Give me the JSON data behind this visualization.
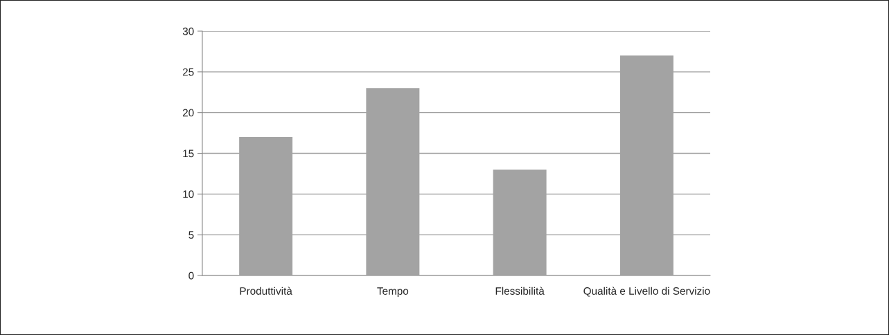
{
  "chart_data": {
    "type": "bar",
    "categories": [
      "Produttività",
      "Tempo",
      "Flessibilità",
      "Qualità e Livello di Servizio"
    ],
    "values": [
      17,
      23,
      13,
      27
    ],
    "color": "#a3a3a3",
    "ylim": [
      0,
      30
    ],
    "yticks": [
      0,
      5,
      10,
      15,
      20,
      25,
      30
    ],
    "grid": "y"
  }
}
